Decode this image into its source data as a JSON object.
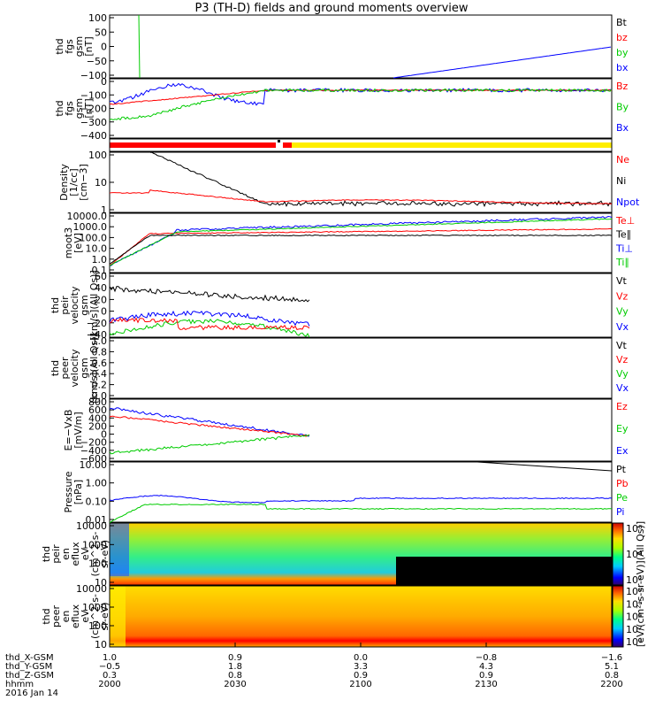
{
  "title": "P3 (TH-D) fields and ground moments overview",
  "colors": {
    "black": "#000000",
    "red": "#ff0000",
    "green": "#00cc00",
    "blue": "#0000ff"
  },
  "panels": [
    {
      "id": "fgs1",
      "ylabel": [
        "thd",
        "fgs",
        "gsm",
        "[nT]"
      ],
      "ticks": [
        "100",
        "50",
        "0",
        "−50",
        "−100"
      ],
      "legend": [
        {
          "t": "Bt",
          "c": "black"
        },
        {
          "t": "bz",
          "c": "red"
        },
        {
          "t": "by",
          "c": "green"
        },
        {
          "t": "bx",
          "c": "blue"
        }
      ]
    },
    {
      "id": "fgs2",
      "ylabel": [
        "thd",
        "fgs",
        "gsm",
        "[nT]"
      ],
      "ticks": [
        "0",
        "−100",
        "−200",
        "−300",
        "−400"
      ],
      "legend": [
        {
          "t": "Bz",
          "c": "red"
        },
        {
          "t": "By",
          "c": "green"
        },
        {
          "t": "Bx",
          "c": "blue"
        }
      ]
    },
    {
      "id": "mode",
      "ylabel": [],
      "ticks": [],
      "legend": []
    },
    {
      "id": "density",
      "ylabel": [
        "Density",
        "[1/cc]",
        "[cm−3]"
      ],
      "ticks": [
        "100",
        "10",
        "1"
      ],
      "legend": [
        {
          "t": "Ne",
          "c": "red"
        },
        {
          "t": "Ni",
          "c": "black"
        },
        {
          "t": "Npot",
          "c": "blue"
        }
      ]
    },
    {
      "id": "temp",
      "ylabel": [
        "moot3",
        "[eV]"
      ],
      "ticks": [
        "10000.0",
        "1000.0",
        "100.0",
        "10.0",
        "1.0",
        "0.1"
      ],
      "legend": [
        {
          "t": "Te⊥",
          "c": "red"
        },
        {
          "t": "Te∥",
          "c": "black"
        },
        {
          "t": "Ti⊥",
          "c": "blue"
        },
        {
          "t": "Ti∥",
          "c": "green"
        }
      ]
    },
    {
      "id": "vi",
      "ylabel": [
        "thd",
        "peir",
        "velocity",
        "gsm",
        "[km/s](All Qs)]"
      ],
      "ticks": [
        "60",
        "40",
        "20",
        "0",
        "−20",
        "−40"
      ],
      "legend": [
        {
          "t": "Vt",
          "c": "black"
        },
        {
          "t": "Vz",
          "c": "red"
        },
        {
          "t": "Vy",
          "c": "green"
        },
        {
          "t": "Vx",
          "c": "blue"
        }
      ]
    },
    {
      "id": "ve",
      "ylabel": [
        "thd",
        "peer",
        "velocity",
        "gsm",
        "[km/s](All Qs)]"
      ],
      "ticks": [
        "1.0",
        "0.8",
        "0.6",
        "0.4",
        "0.2",
        "0.0"
      ],
      "legend": [
        {
          "t": "Vt",
          "c": "black"
        },
        {
          "t": "Vz",
          "c": "red"
        },
        {
          "t": "Vy",
          "c": "green"
        },
        {
          "t": "Vx",
          "c": "blue"
        }
      ]
    },
    {
      "id": "efield",
      "ylabel": [
        "E=−VxB",
        "[mV/m]"
      ],
      "ticks": [
        "800",
        "600",
        "400",
        "200",
        "0",
        "−200",
        "−400",
        "−600"
      ],
      "legend": [
        {
          "t": "Ez",
          "c": "red"
        },
        {
          "t": "Ey",
          "c": "green"
        },
        {
          "t": "Ex",
          "c": "blue"
        }
      ]
    },
    {
      "id": "pressure",
      "ylabel": [
        "Pressure",
        "[nPa]"
      ],
      "ticks": [
        "10.00",
        "1.00",
        "0.10",
        "0.01"
      ],
      "legend": [
        {
          "t": "Pt",
          "c": "black"
        },
        {
          "t": "Pb",
          "c": "red"
        },
        {
          "t": "Pe",
          "c": "green"
        },
        {
          "t": "Pi",
          "c": "blue"
        }
      ]
    },
    {
      "id": "ispec",
      "ylabel": [
        "thd",
        "peir",
        "en",
        "eflux",
        "eV",
        "(cm^2-s-",
        "sr-eV)"
      ],
      "ticks": [
        "10000",
        "1000",
        "100",
        "10"
      ],
      "legend": []
    },
    {
      "id": "espec",
      "ylabel": [
        "thd",
        "peer",
        "en",
        "eflux",
        "eV",
        "(cm^2-s-",
        "sr-eV)"
      ],
      "ticks": [
        "10000",
        "1000",
        "100",
        "10"
      ],
      "legend": []
    }
  ],
  "colorbars": [
    {
      "ticks": [
        "10⁶",
        "10⁴",
        "10²"
      ]
    },
    {
      "ticks": [
        "10⁸",
        "10⁶",
        "10⁴",
        "10²",
        "10⁰"
      ]
    }
  ],
  "colorbar_label": "[eV/(cm²-s-sr-eV)](All Qs)]",
  "x_axis": {
    "ticks": [
      "2000",
      "2030",
      "2100",
      "2130",
      "2200"
    ],
    "rows": [
      {
        "label": "thd_X-GSM",
        "values": [
          "1.0",
          "0.9",
          "0.0",
          "−0.8",
          "−1.6"
        ]
      },
      {
        "label": "thd_Y-GSM",
        "values": [
          "−0.5",
          "1.8",
          "3.3",
          "4.3",
          "5.1"
        ]
      },
      {
        "label": "thd_Z-GSM",
        "values": [
          "0.3",
          "0.8",
          "0.9",
          "0.9",
          "0.8"
        ]
      },
      {
        "label": "hhmm",
        "values": [
          "2000",
          "2030",
          "2100",
          "2130",
          "2200"
        ]
      }
    ],
    "date": "2016 Jan 14"
  },
  "chart_data": {
    "type": "line",
    "x": [
      "2000",
      "2030",
      "2100",
      "2130",
      "2200"
    ],
    "series": [
      {
        "name": "Bx",
        "values": [
          -120,
          null,
          -100,
          -50,
          -5
        ]
      },
      {
        "name": "Bz",
        "values": [
          -100,
          -5,
          0,
          0,
          0
        ]
      },
      {
        "name": "By",
        "values": [
          -290,
          -5,
          0,
          0,
          0
        ]
      },
      {
        "name": "Ne",
        "values": [
          2,
          0.6,
          1.5,
          1.2,
          0.7
        ]
      },
      {
        "name": "Ni",
        "values": [
          150,
          0.6,
          1.3,
          0.8,
          0.7
        ]
      },
      {
        "name": "Te⊥",
        "values": [
          1,
          400,
          600,
          600,
          600
        ]
      },
      {
        "name": "Ti⊥",
        "values": [
          0.5,
          400,
          1000,
          2000,
          5000
        ]
      },
      {
        "name": "Vt",
        "values": [
          40,
          30,
          null,
          null,
          null
        ]
      },
      {
        "name": "Vx",
        "values": [
          -20,
          5,
          null,
          null,
          null
        ]
      },
      {
        "name": "Vy",
        "values": [
          -35,
          -10,
          null,
          null,
          null
        ]
      },
      {
        "name": "Vz",
        "values": [
          -10,
          -15,
          null,
          null,
          null
        ]
      },
      {
        "name": "Ez",
        "values": [
          600,
          100,
          null,
          null,
          null
        ]
      },
      {
        "name": "Ey",
        "values": [
          -400,
          -50,
          null,
          null,
          null
        ]
      },
      {
        "name": "Pi",
        "values": [
          0.1,
          0.05,
          0.15,
          0.15,
          0.3
        ]
      },
      {
        "name": "Pe",
        "values": [
          0.01,
          0.03,
          0.05,
          0.05,
          0.04
        ]
      },
      {
        "name": "Pt",
        "values": [
          null,
          null,
          null,
          20,
          10
        ]
      }
    ]
  }
}
